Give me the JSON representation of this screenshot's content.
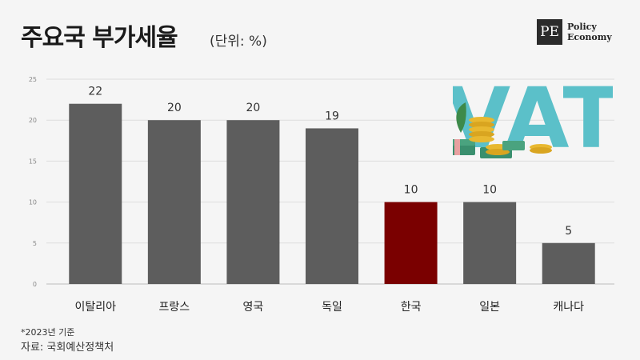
{
  "header": {
    "title": "주요국 부가세율",
    "unit": "(단위: %)"
  },
  "logo": {
    "mark": "PE",
    "line1": "Policy",
    "line2": "Economy"
  },
  "decoration": {
    "text": "VAT",
    "color": "#5bc0c9"
  },
  "chart_data": {
    "type": "bar",
    "categories": [
      "이탈리아",
      "프랑스",
      "영국",
      "독일",
      "한국",
      "일본",
      "캐나다"
    ],
    "values": [
      22,
      20,
      20,
      19,
      10,
      10,
      5
    ],
    "value_labels": [
      "22",
      "20",
      "20",
      "19",
      "10",
      "10",
      "5"
    ],
    "ylim": [
      0,
      25
    ],
    "yticks": [
      "0",
      "5",
      "10",
      "15",
      "20",
      "25"
    ],
    "grid": true,
    "colors": {
      "default": "#5d5d5d",
      "highlight": "#7a0000",
      "highlight_index": 4
    }
  },
  "footer": {
    "note": "*2023년 기준",
    "source": "자료: 국회예산정책처"
  }
}
